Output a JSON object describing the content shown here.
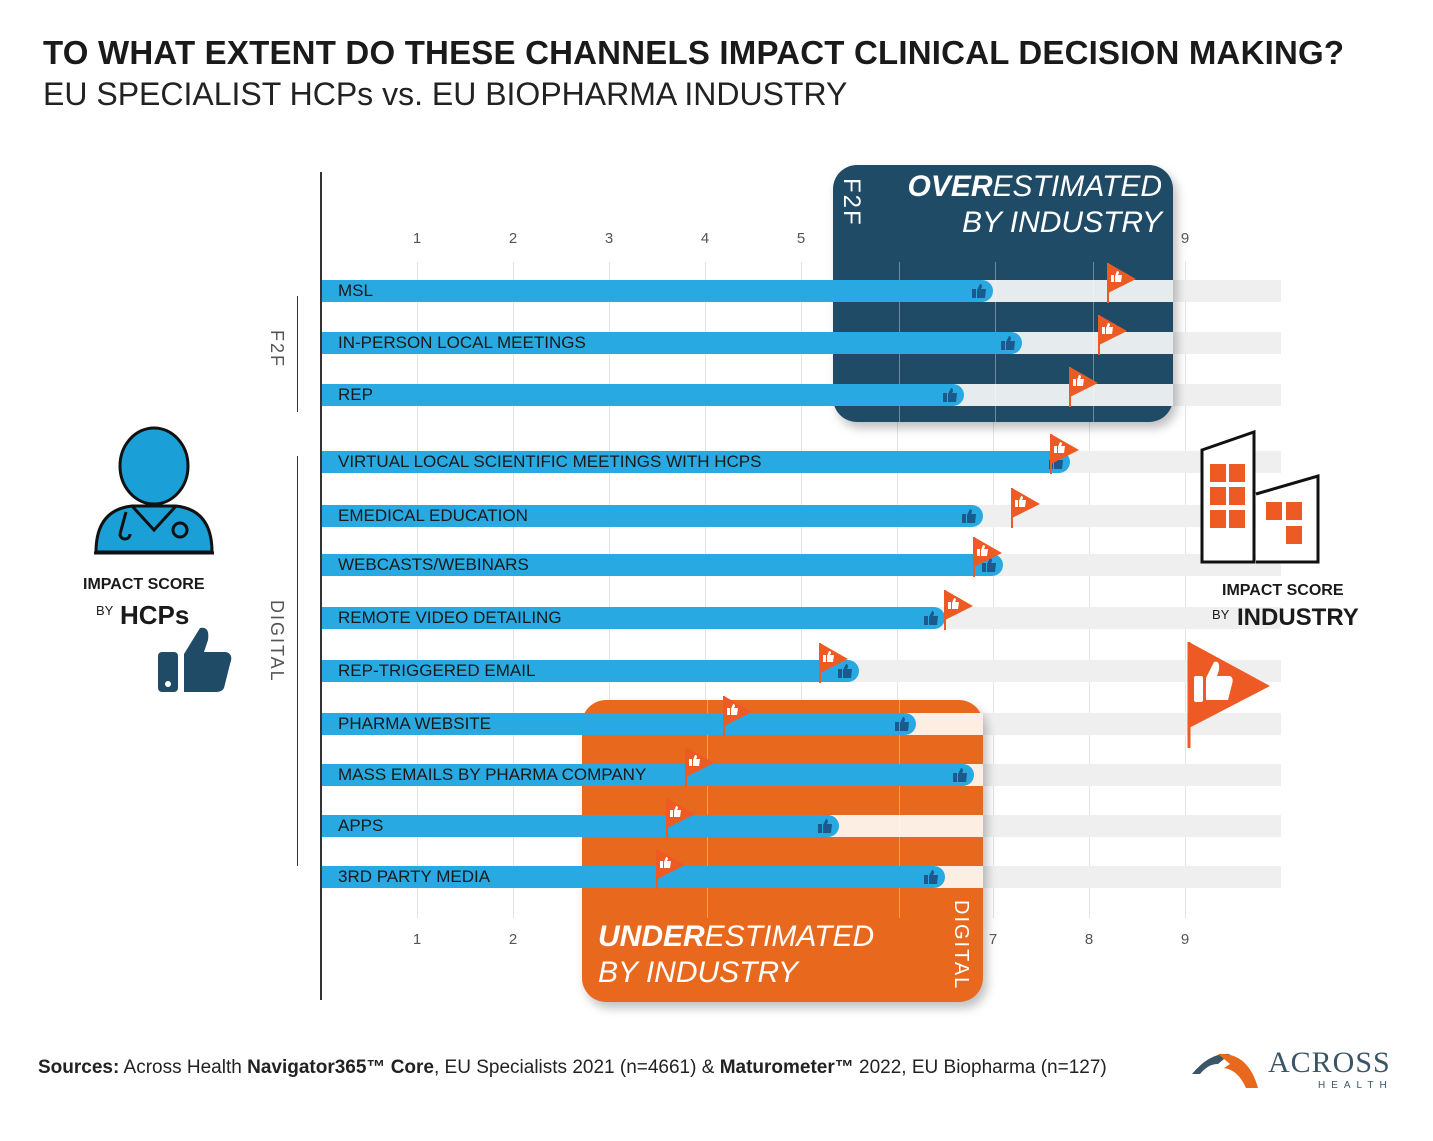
{
  "title": "TO WHAT EXTENT DO THESE CHANNELS IMPACT CLINICAL DECISION MAKING?",
  "subtitle": "EU SPECIALIST HCPs vs. EU BIOPHARMA INDUSTRY",
  "colors": {
    "hcp_bar": "#29a9e1",
    "industry_flag": "#ee5a24",
    "overestimated_box": "#1f4b66",
    "underestimated_box": "#e8691e",
    "thumb": "#1a5a8c"
  },
  "groups": {
    "f2f": "F2F",
    "digital": "DIGITAL"
  },
  "overestimated": {
    "bold": "OVER",
    "rest": "ESTIMATED",
    "line2": "BY INDUSTRY",
    "side": "F2F"
  },
  "underestimated": {
    "bold": "UNDER",
    "rest": "ESTIMATED",
    "line2": "BY INDUSTRY",
    "side": "DIGITAL"
  },
  "legend_hcp": {
    "line1": "IMPACT SCORE",
    "by": "BY",
    "who": "HCPs",
    "icon": "doctor-icon"
  },
  "legend_industry": {
    "line1": "IMPACT SCORE",
    "by": "BY",
    "who": "INDUSTRY",
    "icon": "buildings-icon"
  },
  "sources": {
    "label": "Sources:",
    "t1": " Across Health ",
    "b1": "Navigator365™ Core",
    "t2": ", EU Specialists 2021 (n=4661) & ",
    "b2": "Maturometer™",
    "t3": " 2022, EU Biopharma (n=127)"
  },
  "logo": {
    "name": "ACROSS",
    "sub": "HEALTH"
  },
  "chart_data": {
    "type": "bar",
    "orientation": "horizontal",
    "xlim": [
      0,
      10
    ],
    "x_ticks_top": [
      "1",
      "2",
      "3",
      "4",
      "5",
      "9"
    ],
    "x_ticks_bottom": [
      "1",
      "2",
      "7",
      "8",
      "9"
    ],
    "grid": true,
    "categories": [
      "MSL",
      "IN-PERSON LOCAL MEETINGS",
      "REP",
      "VIRTUAL LOCAL SCIENTIFIC MEETINGS WITH HCPS",
      "EMEDICAL EDUCATION",
      "WEBCASTS/WEBINARS",
      "REMOTE VIDEO DETAILING",
      "REP-TRIGGERED EMAIL",
      "PHARMA WEBSITE",
      "MASS EMAILS BY PHARMA COMPANY",
      "APPS",
      "3RD PARTY MEDIA"
    ],
    "category_groups": [
      "F2F",
      "F2F",
      "F2F",
      "DIGITAL",
      "DIGITAL",
      "DIGITAL",
      "DIGITAL",
      "DIGITAL",
      "DIGITAL",
      "DIGITAL",
      "DIGITAL",
      "DIGITAL"
    ],
    "series": [
      {
        "name": "IMPACT SCORE BY HCPs",
        "marker": "bar-with-thumb",
        "values": [
          7.0,
          7.3,
          6.7,
          7.8,
          6.9,
          7.1,
          6.5,
          5.6,
          6.2,
          6.8,
          5.4,
          6.5
        ]
      },
      {
        "name": "IMPACT SCORE BY INDUSTRY",
        "marker": "flag",
        "values": [
          8.2,
          8.1,
          7.8,
          7.6,
          7.2,
          6.8,
          6.5,
          5.2,
          4.2,
          3.8,
          3.6,
          3.5
        ]
      }
    ]
  }
}
